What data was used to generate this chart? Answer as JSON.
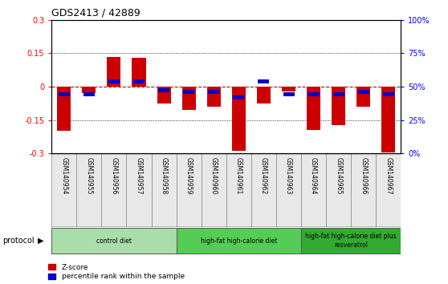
{
  "title": "GDS2413 / 42889",
  "samples": [
    "GSM140954",
    "GSM140955",
    "GSM140956",
    "GSM140957",
    "GSM140958",
    "GSM140959",
    "GSM140960",
    "GSM140961",
    "GSM140962",
    "GSM140963",
    "GSM140964",
    "GSM140965",
    "GSM140966",
    "GSM140967"
  ],
  "zscore": [
    -0.2,
    -0.03,
    0.135,
    0.13,
    -0.075,
    -0.105,
    -0.09,
    -0.29,
    -0.075,
    -0.02,
    -0.195,
    -0.175,
    -0.09,
    -0.295
  ],
  "pct_scaled": [
    -0.036,
    -0.036,
    0.024,
    0.024,
    -0.018,
    -0.024,
    -0.024,
    -0.048,
    0.024,
    -0.036,
    -0.036,
    -0.036,
    -0.024,
    -0.036
  ],
  "ylim": [
    -0.3,
    0.3
  ],
  "yticks_left": [
    -0.3,
    -0.15,
    0,
    0.15,
    0.3
  ],
  "ytick_labels_left": [
    "-0.3",
    "-0.15",
    "0",
    "0.15",
    "0.3"
  ],
  "yticks_right_pos": [
    -0.3,
    -0.15,
    0.0,
    0.15,
    0.3
  ],
  "ytick_labels_right": [
    "0%",
    "25%",
    "50%",
    "75%",
    "100%"
  ],
  "bar_color_red": "#CC0000",
  "bar_color_blue": "#0000CC",
  "zero_line_color": "#CC0000",
  "bar_width": 0.55,
  "blue_bar_width": 0.45,
  "blue_bar_height": 0.018,
  "group_configs": [
    {
      "start": 0,
      "end": 5,
      "color": "#AADDAA",
      "label": "control diet"
    },
    {
      "start": 5,
      "end": 10,
      "color": "#55CC55",
      "label": "high-fat high-calorie diet"
    },
    {
      "start": 10,
      "end": 14,
      "color": "#33AA33",
      "label": "high-fat high-calorie diet plus\nresveratrol"
    }
  ],
  "legend_zscore": "Z-score",
  "legend_pct": "percentile rank within the sample"
}
